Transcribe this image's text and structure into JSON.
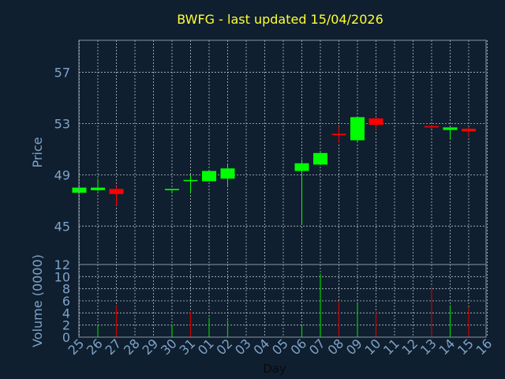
{
  "title": "BWFG - last updated 15/04/2026",
  "colors": {
    "background": "#0f1f2f",
    "title": "#ffff33",
    "axis_text": "#7fa3c8",
    "frame": "#8a97a3",
    "grid": "#b8c0c8",
    "up": "#00ff00",
    "down": "#ff0000",
    "volume_up": "#00cc00",
    "volume_down": "#cc0000"
  },
  "chart_data": [
    {
      "type": "candlestick",
      "ylabel": "Price",
      "ylim": [
        42,
        59.5
      ],
      "yticks": [
        45,
        49,
        53,
        57
      ],
      "grid": true,
      "xlabel": "Day",
      "x": [
        "25",
        "26",
        "27",
        "28",
        "29",
        "30",
        "31",
        "01",
        "02",
        "03",
        "04",
        "05",
        "06",
        "07",
        "08",
        "09",
        "10",
        "11",
        "12",
        "13",
        "14",
        "15",
        "16"
      ],
      "candles": [
        {
          "x": "25",
          "open": 47.6,
          "high": 48.0,
          "low": 47.6,
          "close": 48.0
        },
        {
          "x": "26",
          "open": 47.8,
          "high": 48.7,
          "low": 47.7,
          "close": 48.0
        },
        {
          "x": "27",
          "open": 47.9,
          "high": 48.1,
          "low": 46.6,
          "close": 47.5
        },
        {
          "x": "30",
          "open": 47.8,
          "high": 47.9,
          "low": 47.6,
          "close": 47.9
        },
        {
          "x": "31",
          "open": 48.6,
          "high": 49.0,
          "low": 47.6,
          "close": 48.6
        },
        {
          "x": "01",
          "open": 48.5,
          "high": 49.3,
          "low": 48.5,
          "close": 49.3
        },
        {
          "x": "02",
          "open": 48.7,
          "high": 49.8,
          "low": 48.1,
          "close": 49.5
        },
        {
          "x": "06",
          "open": 49.3,
          "high": 50.2,
          "low": 45.1,
          "close": 49.9
        },
        {
          "x": "07",
          "open": 49.8,
          "high": 50.8,
          "low": 49.8,
          "close": 50.7
        },
        {
          "x": "08",
          "open": 52.2,
          "high": 52.8,
          "low": 51.5,
          "close": 52.1
        },
        {
          "x": "09",
          "open": 51.7,
          "high": 53.5,
          "low": 51.5,
          "close": 53.5
        },
        {
          "x": "10",
          "open": 53.4,
          "high": 53.5,
          "low": 52.5,
          "close": 52.9
        },
        {
          "x": "13",
          "open": 52.8,
          "high": 52.9,
          "low": 52.6,
          "close": 52.7
        },
        {
          "x": "14",
          "open": 52.5,
          "high": 52.7,
          "low": 51.8,
          "close": 52.7
        },
        {
          "x": "15",
          "open": 52.6,
          "high": 52.7,
          "low": 52.0,
          "close": 52.4
        }
      ]
    },
    {
      "type": "bar",
      "ylabel": "Volume (0000)",
      "ylim": [
        0,
        12
      ],
      "yticks": [
        0,
        2,
        4,
        6,
        8,
        10,
        12
      ],
      "grid": true,
      "xlabel": "Day",
      "x": [
        "25",
        "26",
        "27",
        "28",
        "29",
        "30",
        "31",
        "01",
        "02",
        "03",
        "04",
        "05",
        "06",
        "07",
        "08",
        "09",
        "10",
        "11",
        "12",
        "13",
        "14",
        "15",
        "16"
      ],
      "bars": [
        {
          "x": "26",
          "value": 2.0,
          "direction": "up"
        },
        {
          "x": "27",
          "value": 5.2,
          "direction": "down"
        },
        {
          "x": "30",
          "value": 2.1,
          "direction": "up"
        },
        {
          "x": "31",
          "value": 4.2,
          "direction": "down"
        },
        {
          "x": "01",
          "value": 3.2,
          "direction": "up"
        },
        {
          "x": "02",
          "value": 2.8,
          "direction": "up"
        },
        {
          "x": "06",
          "value": 1.9,
          "direction": "up"
        },
        {
          "x": "07",
          "value": 10.5,
          "direction": "up"
        },
        {
          "x": "08",
          "value": 6.0,
          "direction": "down"
        },
        {
          "x": "09",
          "value": 5.5,
          "direction": "up"
        },
        {
          "x": "10",
          "value": 4.3,
          "direction": "down"
        },
        {
          "x": "13",
          "value": 8.4,
          "direction": "down"
        },
        {
          "x": "14",
          "value": 5.3,
          "direction": "up"
        },
        {
          "x": "15",
          "value": 5.0,
          "direction": "down"
        }
      ]
    }
  ]
}
